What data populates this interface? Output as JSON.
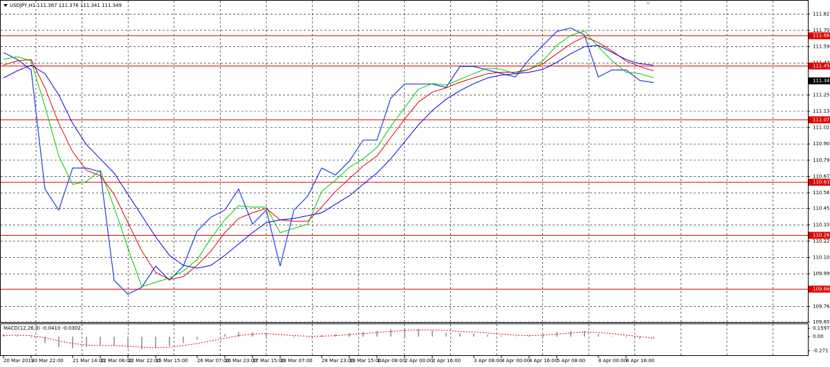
{
  "chart_data": [
    {
      "type": "line",
      "title": "USDJPY,H1  111.367 111.376 111.341 111.349",
      "categories": [
        "20 Mar 2019",
        null,
        "20 Mar 22:00",
        null,
        null,
        "21 Mar 14:00",
        null,
        "22 Mar 06:00",
        null,
        "22 Mar 22:00",
        null,
        "25 Mar 15:00",
        null,
        null,
        "26 Mar 07:00",
        null,
        "26 Mar 23:00",
        null,
        "27 Mar 15:00",
        null,
        "28 Mar 07:00",
        null,
        null,
        "28 Mar 23:00",
        null,
        "29 Mar 15:00",
        null,
        "1 Apr 08:00",
        null,
        "2 Apr 00:00",
        null,
        "2 Apr 16:00",
        null,
        null,
        "3 Apr 08:00",
        null,
        "4 Apr 00:00",
        null,
        "4 Apr 16:00",
        null,
        "5 Apr 08:00",
        null,
        null,
        "8 Apr 00:00",
        null,
        "8 Apr 16:00",
        null,
        null
      ],
      "series": [
        {
          "color": "#1e3cdc",
          "values": [
            111.549,
            111.5,
            111.426,
            110.587,
            110.439,
            110.735,
            110.735,
            110.71,
            109.945,
            109.846,
            109.896,
            110.044,
            109.945,
            110.044,
            110.291,
            110.389,
            110.439,
            110.587,
            110.34,
            110.439,
            110.044,
            110.439,
            110.537,
            110.735,
            110.686,
            110.784,
            110.932,
            110.932,
            111.228,
            111.327,
            111.327,
            111.327,
            111.303,
            111.451,
            111.451,
            111.426,
            111.401,
            111.377,
            111.5,
            111.599,
            111.697,
            111.722,
            111.673,
            111.377,
            111.426,
            111.426,
            111.352,
            111.337
          ]
        },
        {
          "color": "#00c800",
          "values": [
            111.5,
            111.52,
            111.49,
            111.17,
            110.82,
            110.62,
            110.64,
            110.72,
            110.46,
            110.17,
            109.9,
            109.93,
            109.96,
            110.01,
            110.09,
            110.24,
            110.37,
            110.47,
            110.46,
            110.46,
            110.28,
            110.31,
            110.34,
            110.57,
            110.65,
            110.74,
            110.8,
            110.88,
            111.03,
            111.16,
            111.29,
            111.33,
            111.32,
            111.36,
            111.4,
            111.44,
            111.43,
            111.4,
            111.43,
            111.49,
            111.6,
            111.67,
            111.7,
            111.59,
            111.49,
            111.41,
            111.4,
            111.37
          ]
        },
        {
          "color": "#e00000",
          "values": [
            111.46,
            111.49,
            111.5,
            111.3,
            111.05,
            110.85,
            110.72,
            110.68,
            110.55,
            110.35,
            110.15,
            110.0,
            109.95,
            109.97,
            110.05,
            110.15,
            110.28,
            110.38,
            110.42,
            110.45,
            110.37,
            110.36,
            110.36,
            110.46,
            110.57,
            110.66,
            110.75,
            110.82,
            110.95,
            111.08,
            111.2,
            111.27,
            111.3,
            111.34,
            111.37,
            111.4,
            111.41,
            111.41,
            111.43,
            111.47,
            111.54,
            111.61,
            111.66,
            111.62,
            111.56,
            111.49,
            111.45,
            111.42
          ]
        },
        {
          "color": "#0000d0",
          "values": [
            111.37,
            111.42,
            111.46,
            111.4,
            111.25,
            111.05,
            110.9,
            110.8,
            110.7,
            110.55,
            110.4,
            110.25,
            110.12,
            110.05,
            110.03,
            110.05,
            110.12,
            110.2,
            110.28,
            110.35,
            110.37,
            110.38,
            110.4,
            110.42,
            110.48,
            110.54,
            110.62,
            110.7,
            110.8,
            110.92,
            111.04,
            111.14,
            111.22,
            111.28,
            111.33,
            111.37,
            111.39,
            111.4,
            111.41,
            111.43,
            111.48,
            111.54,
            111.59,
            111.6,
            111.55,
            111.5,
            111.47,
            111.46
          ]
        }
      ],
      "ylim": [
        109.65,
        111.88
      ],
      "yticks": [
        {
          "value": 111.82,
          "label": "111.820"
        },
        111.705,
        {
          "value": 111.59,
          "label": "111.590"
        },
        111.475,
        {
          "value": 111.25,
          "label": "111.250"
        },
        111.135,
        {
          "value": 111.02,
          "label": "111.020"
        },
        110.905,
        {
          "value": 110.79,
          "label": "110.790"
        },
        110.675,
        {
          "value": 110.56,
          "label": "110.560"
        },
        {
          "value": 110.45,
          "label": "110.450"
        },
        110.335,
        {
          "value": 110.22,
          "label": "110.220"
        },
        110.105,
        {
          "value": 109.99,
          "label": "109.990"
        },
        {
          "value": 109.76,
          "label": "109.760"
        },
        {
          "value": 109.65,
          "label": "109.650"
        }
      ],
      "levels": [
        111.667,
        111.454,
        111.075,
        110.635,
        110.261,
        109.882
      ],
      "level_color": "#e00000",
      "last_price": 111.349,
      "grid": true
    },
    {
      "type": "macd",
      "title": "MACD(12,26,9) -0.0410 -0.0302",
      "values": [
        0.05,
        0.03,
        -0.02,
        -0.12,
        -0.2,
        -0.22,
        -0.2,
        -0.16,
        -0.18,
        -0.22,
        -0.24,
        -0.22,
        -0.18,
        -0.12,
        -0.06,
        0.0,
        0.05,
        0.09,
        0.08,
        0.06,
        0.0,
        -0.02,
        -0.01,
        0.03,
        0.05,
        0.07,
        0.09,
        0.11,
        0.14,
        0.16,
        0.15,
        0.12,
        0.08,
        0.07,
        0.06,
        0.04,
        0.02,
        0.0,
        0.02,
        0.05,
        0.09,
        0.11,
        0.11,
        0.05,
        0.01,
        -0.02,
        -0.04,
        -0.04
      ],
      "color": "#a8a8a8",
      "signal": [
        0.02,
        0.03,
        0.02,
        -0.02,
        -0.08,
        -0.13,
        -0.16,
        -0.17,
        -0.17,
        -0.18,
        -0.2,
        -0.21,
        -0.2,
        -0.17,
        -0.13,
        -0.08,
        -0.03,
        0.02,
        0.05,
        0.06,
        0.04,
        0.02,
        0.01,
        0.01,
        0.02,
        0.04,
        0.06,
        0.08,
        0.1,
        0.12,
        0.13,
        0.13,
        0.12,
        0.1,
        0.09,
        0.07,
        0.05,
        0.03,
        0.02,
        0.03,
        0.05,
        0.07,
        0.09,
        0.08,
        0.06,
        0.03,
        0.0,
        -0.03
      ],
      "signal_color": "#e00000",
      "ylim": [
        -0.355,
        0.24
      ],
      "yticks": [
        0.1597,
        {
          "value": 0,
          "label": "0.00"
        },
        -0.271
      ]
    }
  ]
}
